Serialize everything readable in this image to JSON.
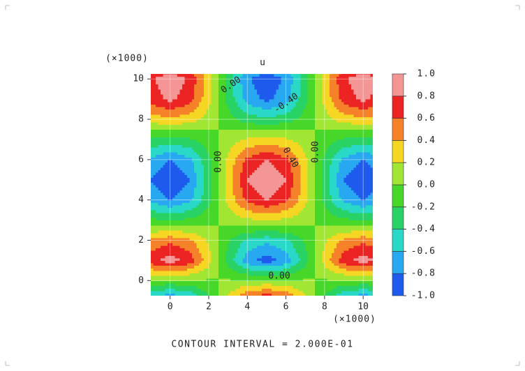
{
  "chart_data": {
    "type": "contour",
    "title": "u",
    "x": [
      -1,
      0,
      1,
      2,
      3,
      4,
      5,
      6,
      7,
      8,
      9,
      10,
      11
    ],
    "y": [
      -1,
      0,
      1,
      2,
      3,
      4,
      5,
      6,
      7,
      8,
      9,
      10,
      11
    ],
    "z": [
      [
        -0.73,
        -0.9,
        -0.73,
        -0.28,
        0.28,
        0.73,
        0.9,
        0.73,
        0.28,
        -0.28,
        -0.73,
        -0.9,
        -0.73
      ],
      [
        -0.04,
        -0.05,
        -0.04,
        -0.02,
        0.02,
        0.04,
        0.05,
        0.04,
        0.02,
        -0.02,
        -0.04,
        -0.05,
        -0.04
      ],
      [
        0.73,
        0.9,
        0.73,
        0.28,
        -0.28,
        -0.73,
        -0.9,
        -0.73,
        -0.28,
        0.28,
        0.73,
        0.9,
        0.73
      ],
      [
        0.45,
        0.55,
        0.45,
        0.17,
        -0.17,
        -0.45,
        -0.55,
        -0.45,
        -0.17,
        0.17,
        0.45,
        0.55,
        0.45
      ],
      [
        -0.16,
        -0.2,
        -0.16,
        -0.06,
        0.06,
        0.16,
        0.2,
        0.16,
        0.06,
        -0.06,
        -0.16,
        -0.2,
        -0.16
      ],
      [
        -0.65,
        -0.8,
        -0.65,
        -0.25,
        0.25,
        0.65,
        0.8,
        0.65,
        0.25,
        -0.25,
        -0.65,
        -0.8,
        -0.65
      ],
      [
        -0.81,
        -1,
        -0.81,
        -0.31,
        0.31,
        0.81,
        1,
        0.81,
        0.31,
        -0.31,
        -0.81,
        -1,
        -0.81
      ],
      [
        -0.65,
        -0.8,
        -0.65,
        -0.25,
        0.25,
        0.65,
        0.8,
        0.65,
        0.25,
        -0.25,
        -0.65,
        -0.8,
        -0.65
      ],
      [
        -0.24,
        -0.3,
        -0.24,
        -0.09,
        0.09,
        0.24,
        0.3,
        0.24,
        0.09,
        -0.09,
        -0.24,
        -0.3,
        -0.24
      ],
      [
        0.28,
        0.35,
        0.28,
        0.11,
        -0.11,
        -0.28,
        -0.35,
        -0.28,
        -0.11,
        0.11,
        0.28,
        0.35,
        0.28
      ],
      [
        0.69,
        0.85,
        0.69,
        0.26,
        -0.26,
        -0.69,
        -0.85,
        -0.69,
        -0.26,
        0.26,
        0.69,
        0.85,
        0.69
      ],
      [
        0.77,
        0.95,
        0.77,
        0.29,
        -0.29,
        -0.77,
        -0.95,
        -0.77,
        -0.29,
        0.29,
        0.77,
        0.95,
        0.77
      ],
      [
        0.41,
        0.5,
        0.41,
        0.16,
        -0.16,
        -0.41,
        -0.5,
        -0.41,
        -0.16,
        0.16,
        0.41,
        0.5,
        0.41
      ]
    ],
    "xlim": [
      -1,
      10.5
    ],
    "ylim": [
      -0.75,
      10.25
    ],
    "xticks": [
      0,
      2,
      4,
      6,
      8,
      10
    ],
    "yticks": [
      0,
      2,
      4,
      6,
      8,
      10
    ],
    "x_scale_label": "(×1000)",
    "y_scale_label": "(×1000)",
    "grid": true,
    "levels": [
      {
        "value": -1,
        "label": "-1.0"
      },
      -0.8,
      -0.6,
      -0.4,
      -0.2,
      {
        "value": 0,
        "label": "0.0"
      },
      0.2,
      0.4,
      0.6,
      0.8,
      {
        "value": 1,
        "label": "1.0"
      }
    ],
    "colors": [
      "#1e5aeb",
      "#28a8f0",
      "#2ad8c8",
      "#28d264",
      "#46d728",
      "#a0e632",
      "#f5d723",
      "#f58228",
      "#eb2323",
      "#f59696"
    ],
    "contour_labels": [
      {
        "value": 0,
        "label": "0.00"
      },
      {
        "value": -0.4,
        "label": "-0.40"
      },
      {
        "value": 0,
        "label": "0.00"
      },
      {
        "value": 0.4,
        "label": "0.40"
      },
      {
        "value": 0,
        "label": "0.00"
      },
      {
        "value": 0,
        "label": "0.00"
      }
    ],
    "footer": "CONTOUR INTERVAL = 2.000E-01"
  }
}
